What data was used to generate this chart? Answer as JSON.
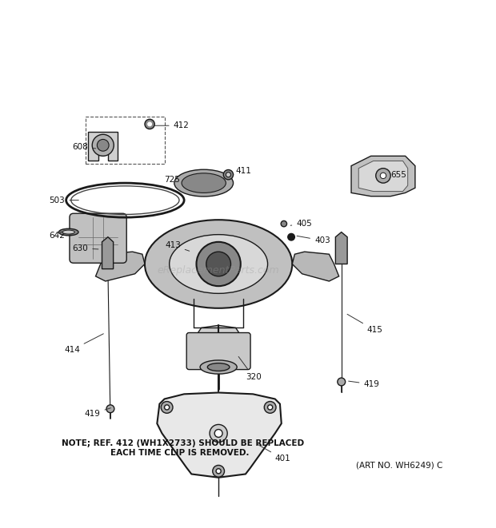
{
  "background_color": "#ffffff",
  "note_line1": "NOTE; REF. 412 (WH1X2733) SHOULD BE REPLACED",
  "note_line2": "EACH TIME CLIP IS REMOVED.",
  "art_no": "(ART NO. WH6249) C",
  "watermark": "eReplacementParts.com",
  "fig_width": 6.2,
  "fig_height": 6.61,
  "dpi": 100
}
